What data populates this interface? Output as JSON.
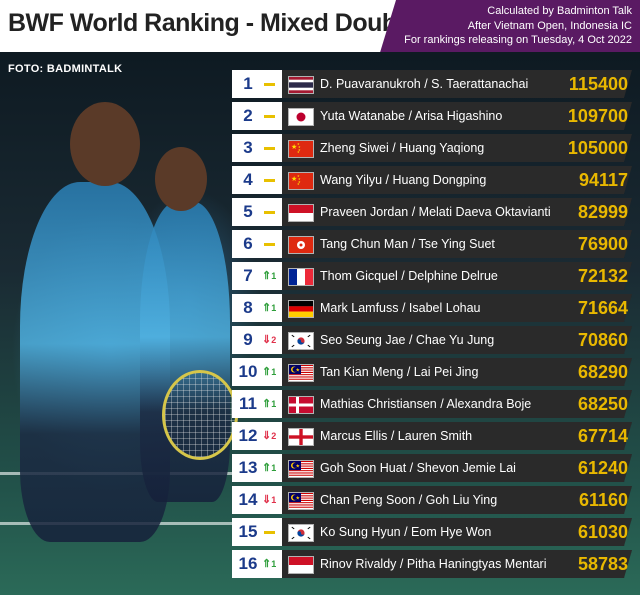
{
  "header": {
    "title": "BWF World Ranking - Mixed Doubles",
    "info_line1": "Calculated by Badminton Talk",
    "info_line2": "After Vietnam Open, Indonesia IC",
    "info_line3": "For rankings releasing on Tuesday, 4 Oct 2022"
  },
  "photo_credit": "FOTO: BADMINTALK",
  "colors": {
    "header_bg": "#5a1a63",
    "row_bg": "#2a2a2a",
    "rank_color": "#1b3a8a",
    "points_color": "#e9b800",
    "up_color": "#2e9e3a",
    "down_color": "#e0304a",
    "no_change_color": "#e8c000"
  },
  "rankings": [
    {
      "rank": "1",
      "movement": "none",
      "change": "",
      "flag": "thailand-flag",
      "pair": "D. Puavaranukroh / S. Taerattanachai",
      "points": "115400"
    },
    {
      "rank": "2",
      "movement": "none",
      "change": "",
      "flag": "japan-flag",
      "pair": "Yuta Watanabe / Arisa Higashino",
      "points": "109700"
    },
    {
      "rank": "3",
      "movement": "none",
      "change": "",
      "flag": "china-flag",
      "pair": "Zheng Siwei / Huang Yaqiong",
      "points": "105000"
    },
    {
      "rank": "4",
      "movement": "none",
      "change": "",
      "flag": "china-flag",
      "pair": "Wang Yilyu / Huang Dongping",
      "points": "94117"
    },
    {
      "rank": "5",
      "movement": "none",
      "change": "",
      "flag": "indonesia-flag",
      "pair": "Praveen Jordan / Melati Daeva Oktavianti",
      "points": "82999"
    },
    {
      "rank": "6",
      "movement": "none",
      "change": "",
      "flag": "hong-kong-flag",
      "pair": "Tang Chun Man / Tse Ying Suet",
      "points": "76900"
    },
    {
      "rank": "7",
      "movement": "up",
      "change": "1",
      "flag": "france-flag",
      "pair": "Thom Gicquel / Delphine Delrue",
      "points": "72132"
    },
    {
      "rank": "8",
      "movement": "up",
      "change": "1",
      "flag": "germany-flag",
      "pair": "Mark Lamfuss / Isabel Lohau",
      "points": "71664"
    },
    {
      "rank": "9",
      "movement": "down",
      "change": "2",
      "flag": "south-korea-flag",
      "pair": "Seo Seung Jae / Chae Yu Jung",
      "points": "70860"
    },
    {
      "rank": "10",
      "movement": "up",
      "change": "1",
      "flag": "malaysia-flag",
      "pair": "Tan Kian Meng / Lai Pei Jing",
      "points": "68290"
    },
    {
      "rank": "11",
      "movement": "up",
      "change": "1",
      "flag": "denmark-flag",
      "pair": "Mathias Christiansen / Alexandra Boje",
      "points": "68250"
    },
    {
      "rank": "12",
      "movement": "down",
      "change": "2",
      "flag": "england-flag",
      "pair": "Marcus Ellis / Lauren Smith",
      "points": "67714"
    },
    {
      "rank": "13",
      "movement": "up",
      "change": "1",
      "flag": "malaysia-flag",
      "pair": "Goh Soon Huat / Shevon Jemie Lai",
      "points": "61240"
    },
    {
      "rank": "14",
      "movement": "down",
      "change": "1",
      "flag": "malaysia-flag",
      "pair": "Chan Peng Soon / Goh Liu Ying",
      "points": "61160"
    },
    {
      "rank": "15",
      "movement": "none",
      "change": "",
      "flag": "south-korea-flag",
      "pair": "Ko Sung Hyun / Eom Hye Won",
      "points": "61030"
    },
    {
      "rank": "16",
      "movement": "up",
      "change": "1",
      "flag": "indonesia-flag",
      "pair": "Rinov Rivaldy / Pitha Haningtyas Mentari",
      "points": "58783"
    }
  ]
}
